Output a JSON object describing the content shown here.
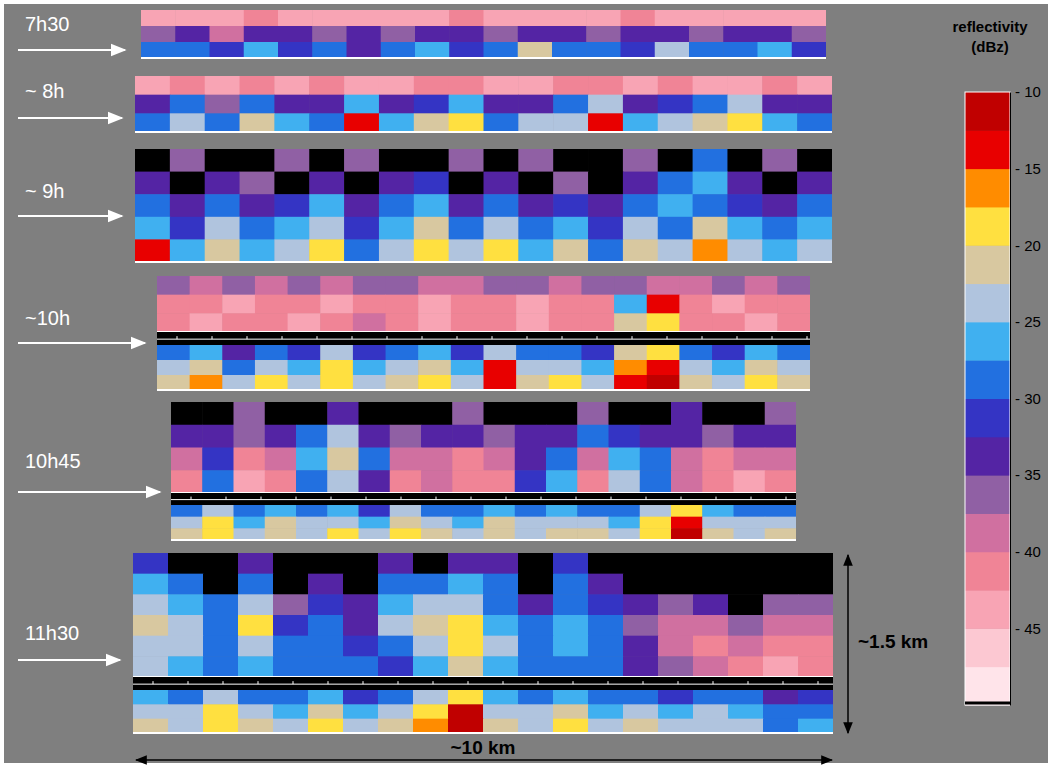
{
  "chart_data": {
    "type": "heatmap",
    "panels": [
      {
        "label": "7h30",
        "strips": [
          {
            "cells": [
              [
                -44,
                -43,
                -44,
                -42,
                -44,
                -43,
                -44,
                -44,
                -43,
                -42,
                -44,
                -43,
                -44,
                -44,
                -42,
                -43,
                -44,
                -43,
                -44,
                -43
              ],
              [
                -36,
                -34,
                -38,
                -35,
                -33,
                -36,
                -34,
                -37,
                -35,
                -33,
                -36,
                -34,
                -35,
                -37,
                -34,
                -33,
                -36,
                -35,
                -34,
                -36
              ],
              [
                -30,
                -28,
                -32,
                -27,
                -31,
                -29,
                -33,
                -30,
                -26,
                -31,
                -29,
                -21,
                -30,
                -28,
                -32,
                -24,
                -30,
                -29,
                -26,
                -31
              ]
            ]
          }
        ]
      },
      {
        "label": "~ 8h",
        "strips": [
          {
            "cells": [
              [
                -43,
                -42,
                -44,
                -41,
                -43,
                -42,
                -44,
                -43,
                -41,
                -42,
                -43,
                -44,
                -42,
                -41,
                -43,
                -42,
                -44,
                -43,
                -42,
                -43
              ],
              [
                -34,
                -30,
                -36,
                -28,
                -33,
                -35,
                -27,
                -34,
                -31,
                -26,
                -35,
                -33,
                -30,
                -25,
                -34,
                -32,
                -29,
                -24,
                -33,
                -35
              ],
              [
                -28,
                -24,
                -30,
                -22,
                -27,
                -29,
                -14,
                -26,
                -22,
                -18,
                -29,
                -25,
                -23,
                -13,
                -27,
                -24,
                -21,
                -19,
                -26,
                -28
              ]
            ]
          }
        ]
      },
      {
        "label": "~ 9h",
        "strips": [
          {
            "cells": [
              [
                null,
                -36,
                null,
                null,
                -37,
                null,
                -36,
                null,
                null,
                -37,
                null,
                -36,
                null,
                null,
                -37,
                null,
                -30,
                null,
                -36,
                null
              ],
              [
                -35,
                null,
                -33,
                -36,
                null,
                -34,
                null,
                -35,
                -32,
                null,
                -34,
                null,
                -36,
                null,
                -35,
                -28,
                -27,
                -34,
                null,
                -35
              ],
              [
                -30,
                -33,
                -28,
                -34,
                -31,
                -27,
                -35,
                -30,
                -26,
                -33,
                -29,
                -34,
                -31,
                -33,
                -30,
                -27,
                -29,
                -31,
                -33,
                -30
              ],
              [
                -26,
                -31,
                -24,
                -30,
                -27,
                -23,
                -32,
                -26,
                -22,
                -29,
                -25,
                -30,
                -27,
                -31,
                -24,
                -28,
                -22,
                -26,
                -30,
                -27
              ],
              [
                -14,
                -27,
                -22,
                -26,
                -23,
                -19,
                -28,
                -24,
                -18,
                -25,
                -20,
                -27,
                -22,
                -28,
                -21,
                -25,
                -17,
                -23,
                -26,
                -24
              ]
            ]
          }
        ]
      },
      {
        "label": "~10h",
        "strips": [
          {
            "cells": [
              [
                -37,
                -38,
                -36,
                -39,
                -37,
                -38,
                -36,
                -37,
                -39,
                -38,
                -36,
                -37,
                -38,
                -36,
                -37,
                -38,
                -39,
                -37,
                -38,
                -36
              ],
              [
                -42,
                -41,
                -43,
                -42,
                -41,
                -43,
                -42,
                -41,
                -43,
                -42,
                -41,
                -43,
                -42,
                -41,
                -27,
                -15,
                -42,
                -43,
                -41,
                -42
              ],
              [
                -42,
                -43,
                -41,
                -42,
                -43,
                -41,
                -40,
                -42,
                -43,
                -41,
                -42,
                -43,
                -41,
                -42,
                -22,
                -18,
                -41,
                -42,
                -43,
                -41
              ]
            ]
          },
          {
            "cells": [
              [
                -30,
                -26,
                -33,
                -28,
                -31,
                -24,
                -32,
                -29,
                -27,
                -31,
                -25,
                -30,
                -28,
                -32,
                -22,
                -18,
                -29,
                -31,
                -27,
                -30
              ],
              [
                -25,
                -21,
                -28,
                -23,
                -26,
                -19,
                -27,
                -24,
                -22,
                -26,
                -15,
                -25,
                -23,
                -27,
                -17,
                -14,
                -24,
                -26,
                -22,
                -25
              ],
              [
                -22,
                -17,
                -25,
                -20,
                -23,
                -18,
                -24,
                -21,
                -19,
                -23,
                -14,
                -22,
                -20,
                -24,
                -13,
                -12,
                -21,
                -23,
                -19,
                -22
              ]
            ]
          }
        ]
      },
      {
        "label": "10h45",
        "strips": [
          {
            "cells": [
              [
                null,
                null,
                -36,
                null,
                null,
                -35,
                null,
                null,
                null,
                -37,
                null,
                null,
                null,
                -36,
                null,
                null,
                -35,
                null,
                null,
                -36
              ],
              [
                -35,
                -33,
                -36,
                -34,
                -30,
                -24,
                -34,
                -36,
                -35,
                -33,
                -36,
                -34,
                -35,
                -30,
                -32,
                -35,
                -33,
                -36,
                -34,
                -35
              ],
              [
                -40,
                -32,
                -41,
                -39,
                -26,
                -21,
                -30,
                -40,
                -39,
                -41,
                -40,
                -33,
                -28,
                -40,
                -27,
                -29,
                -38,
                -41,
                -40,
                -39
              ],
              [
                -42,
                -30,
                -43,
                -41,
                -28,
                -23,
                -33,
                -41,
                -40,
                -42,
                -41,
                -31,
                -26,
                -42,
                -25,
                -30,
                -40,
                -42,
                -43,
                -41
              ]
            ]
          },
          {
            "cells": [
              [
                -28,
                -24,
                -30,
                -26,
                -29,
                -27,
                -31,
                -25,
                -28,
                -30,
                -26,
                -29,
                -27,
                -28,
                -30,
                -24,
                -18,
                -27,
                -29,
                -28
              ],
              [
                -24,
                -20,
                -26,
                -22,
                -25,
                -23,
                -27,
                -21,
                -24,
                -26,
                -22,
                -25,
                -23,
                -24,
                -26,
                -20,
                -13,
                -23,
                -25,
                -24
              ],
              [
                -22,
                -18,
                -24,
                -21,
                -23,
                -20,
                -25,
                -19,
                -22,
                -24,
                -21,
                -23,
                -22,
                -21,
                -24,
                -19,
                -12,
                -21,
                -23,
                -22
              ]
            ]
          }
        ]
      },
      {
        "label": "11h30",
        "strips": [
          {
            "cells": [
              [
                -32,
                null,
                null,
                -33,
                null,
                null,
                null,
                -35,
                null,
                -33,
                -34,
                null,
                -31,
                null,
                null,
                null,
                null,
                null,
                null,
                null
              ],
              [
                -27,
                -30,
                null,
                -29,
                null,
                -34,
                null,
                -30,
                -28,
                -27,
                -30,
                null,
                -28,
                -33,
                null,
                null,
                null,
                null,
                null,
                null
              ],
              [
                -23,
                -26,
                -30,
                -24,
                -36,
                -31,
                -35,
                -27,
                -25,
                -24,
                -28,
                -33,
                -29,
                -31,
                -35,
                -36,
                -35,
                null,
                -36,
                -37
              ],
              [
                -22,
                -25,
                -28,
                -20,
                -32,
                -29,
                -33,
                -25,
                -22,
                -19,
                -26,
                -30,
                -27,
                -29,
                -37,
                -38,
                -38,
                -36,
                -38,
                -40
              ],
              [
                -23,
                -24,
                -29,
                -24,
                -30,
                -28,
                -31,
                -28,
                -24,
                -18,
                -25,
                -28,
                -26,
                -28,
                -35,
                -39,
                -41,
                -40,
                -41,
                -42
              ],
              [
                -25,
                -27,
                -30,
                -27,
                -29,
                -30,
                -30,
                -31,
                -26,
                -21,
                -27,
                -29,
                -28,
                -30,
                -33,
                -36,
                -40,
                -42,
                -43,
                -42
              ]
            ]
          },
          {
            "cells": [
              [
                -27,
                -29,
                -25,
                -28,
                -30,
                -26,
                -31,
                -28,
                -23,
                -18,
                -27,
                -29,
                -26,
                -30,
                -28,
                -31,
                -29,
                -30,
                -33,
                -31
              ],
              [
                -23,
                -25,
                -20,
                -24,
                -26,
                -22,
                -27,
                -24,
                -19,
                -12,
                -23,
                -25,
                -22,
                -26,
                -24,
                -27,
                -25,
                -26,
                -30,
                -28
              ],
              [
                -21,
                -23,
                -18,
                -22,
                -24,
                -20,
                -25,
                -22,
                -17,
                -11,
                -21,
                -23,
                -20,
                -24,
                -22,
                -25,
                -23,
                -24,
                -28,
                -26
              ]
            ]
          }
        ]
      }
    ],
    "height_label": "~1.5 km",
    "width_label": "~10 km",
    "colorbar": {
      "title": "reflectivity",
      "unit": "(dBz)",
      "range": [
        -50,
        -10
      ],
      "ticks": [
        {
          "value": -10,
          "label": "- 10"
        },
        {
          "value": -15,
          "label": "- 15"
        },
        {
          "value": -20,
          "label": "- 20"
        },
        {
          "value": -25,
          "label": "- 25"
        },
        {
          "value": -30,
          "label": "- 30"
        },
        {
          "value": -35,
          "label": "- 35"
        },
        {
          "value": -40,
          "label": "- 40"
        },
        {
          "value": -45,
          "label": "- 45"
        }
      ],
      "colors": [
        "#ffe4ea",
        "#fcc8d2",
        "#f8a4b4",
        "#f08496",
        "#d070a0",
        "#9060a4",
        "#5424a4",
        "#3434c4",
        "#2270e0",
        "#40b0f0",
        "#b0c4de",
        "#d8c8a0",
        "#ffe040",
        "#ff8c00",
        "#e80000",
        "#c00000"
      ]
    }
  }
}
